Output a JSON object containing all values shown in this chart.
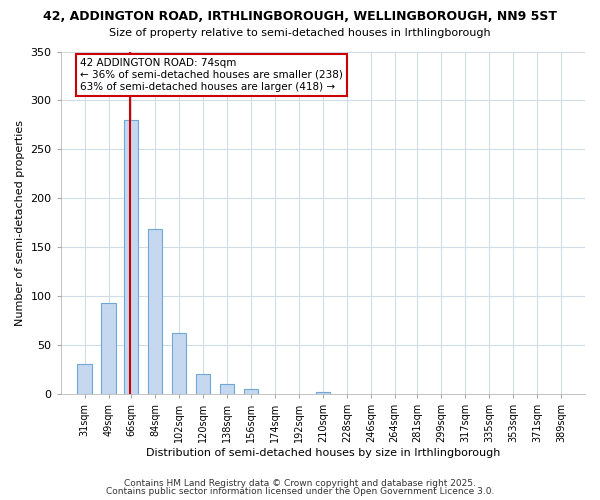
{
  "title": "42, ADDINGTON ROAD, IRTHLINGBOROUGH, WELLINGBOROUGH, NN9 5ST",
  "subtitle": "Size of property relative to semi-detached houses in Irthlingborough",
  "xlabel": "Distribution of semi-detached houses by size in Irthlingborough",
  "ylabel": "Number of semi-detached properties",
  "bar_color": "#c5d8f0",
  "bar_edge_color": "#6fa8d4",
  "background_color": "#ffffff",
  "plot_bg_color": "#ffffff",
  "grid_color": "#d0dce8",
  "annotation_box_color": "#cc0000",
  "red_line_color": "#cc0000",
  "property_size": 74,
  "bin_edges": [
    31,
    49,
    66,
    84,
    102,
    120,
    138,
    156,
    174,
    192,
    210,
    228,
    246,
    264,
    281,
    299,
    317,
    335,
    353,
    371,
    389
  ],
  "bar_heights": [
    30,
    93,
    280,
    168,
    62,
    20,
    10,
    5,
    0,
    0,
    2,
    0,
    0,
    0,
    0,
    0,
    0,
    0,
    0,
    0
  ],
  "annotation_title": "42 ADDINGTON ROAD: 74sqm",
  "annotation_line2": "← 36% of semi-detached houses are smaller (238)",
  "annotation_line3": "63% of semi-detached houses are larger (418) →",
  "footer1": "Contains HM Land Registry data © Crown copyright and database right 2025.",
  "footer2": "Contains public sector information licensed under the Open Government Licence 3.0.",
  "ylim": [
    0,
    350
  ],
  "yticks": [
    0,
    50,
    100,
    150,
    200,
    250,
    300,
    350
  ]
}
